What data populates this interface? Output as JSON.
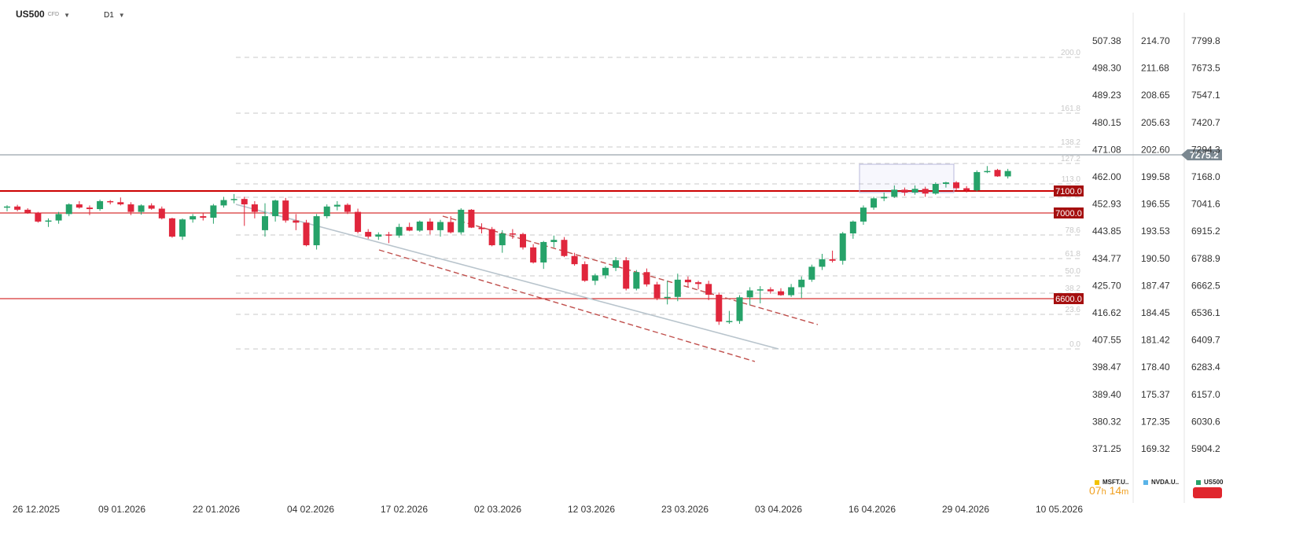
{
  "header": {
    "symbol": "US500",
    "symbol_type": "CFD",
    "timeframe": "D1"
  },
  "countdown": {
    "hours": "07",
    "hours_unit": "h",
    "minutes": "14",
    "minutes_unit": "m"
  },
  "legend": [
    {
      "label": "MSFT.U..",
      "color": "#f2c200"
    },
    {
      "label": "NVDA.U..",
      "color": "#5ab4e8"
    },
    {
      "label": "US500",
      "color": "#26a269"
    }
  ],
  "colors": {
    "bull": "#26a269",
    "bear": "#e0263c",
    "hline": "#cc0000",
    "channel": "#c0504d",
    "midline": "#b8c4cc",
    "current": "#7a8790"
  },
  "chart_data": {
    "type": "candlestick",
    "price_axis": {
      "labels": [
        "7799.8",
        "7673.5",
        "7547.1",
        "7420.7",
        "7294.3",
        "7168.0",
        "7041.6",
        "6915.2",
        "6788.9",
        "6662.5",
        "6536.1",
        "6409.7",
        "6283.4",
        "6157.0",
        "6030.6",
        "5904.2"
      ],
      "ylim": [
        5904.2,
        7799.8
      ]
    },
    "compare_axis_1": {
      "labels": [
        "507.38",
        "498.30",
        "489.23",
        "480.15",
        "471.08",
        "462.00",
        "452.93",
        "443.85",
        "434.77",
        "425.70",
        "416.62",
        "407.55",
        "398.47",
        "389.40",
        "380.32",
        "371.25"
      ]
    },
    "compare_axis_2": {
      "labels": [
        "214.70",
        "211.68",
        "208.65",
        "205.63",
        "202.60",
        "199.58",
        "196.55",
        "193.53",
        "190.50",
        "187.47",
        "184.45",
        "181.42",
        "178.40",
        "175.37",
        "172.35",
        "169.32"
      ]
    },
    "dates": [
      "26 12.2025",
      "09 01.2026",
      "22 01.2026",
      "04 02.2026",
      "17 02.2026",
      "02 03.2026",
      "12 03.2026",
      "23 03.2026",
      "03 04.2026",
      "16 04.2026",
      "29 04.2026",
      "10 05.2026"
    ],
    "current_price": "7275.2",
    "horizontal_levels": [
      "7100.0",
      "7000.0",
      "6600.0"
    ],
    "fib_levels": [
      "200.0",
      "161.8",
      "138.2",
      "127.2",
      "113.0",
      "100.0",
      "78.6",
      "61.8",
      "50.0",
      "38.2",
      "23.6",
      "0.0"
    ],
    "candles": [
      [
        7025,
        7036,
        7008,
        7030
      ],
      [
        7030,
        7038,
        7008,
        7015
      ],
      [
        7015,
        7022,
        6996,
        7002
      ],
      [
        7002,
        7005,
        6955,
        6960
      ],
      [
        6960,
        6975,
        6935,
        6965
      ],
      [
        6965,
        7005,
        6950,
        6995
      ],
      [
        6995,
        7045,
        6985,
        7040
      ],
      [
        7040,
        7055,
        7020,
        7025
      ],
      [
        7025,
        7035,
        6990,
        7018
      ],
      [
        7018,
        7062,
        7010,
        7055
      ],
      [
        7055,
        7060,
        7040,
        7050
      ],
      [
        7050,
        7072,
        7035,
        7040
      ],
      [
        7040,
        7050,
        6990,
        7005
      ],
      [
        7005,
        7040,
        6992,
        7035
      ],
      [
        7035,
        7045,
        7015,
        7020
      ],
      [
        7020,
        7030,
        6970,
        6975
      ],
      [
        6975,
        6978,
        6885,
        6890
      ],
      [
        6890,
        6975,
        6875,
        6970
      ],
      [
        6970,
        6995,
        6955,
        6985
      ],
      [
        6985,
        7000,
        6965,
        6978
      ],
      [
        6978,
        7042,
        6950,
        7035
      ],
      [
        7035,
        7075,
        7025,
        7060
      ],
      [
        7060,
        7088,
        7045,
        7065
      ],
      [
        7065,
        7075,
        6940,
        7040
      ],
      [
        7040,
        7055,
        6975,
        7005
      ],
      [
        6920,
        7045,
        6890,
        6985
      ],
      [
        6985,
        7062,
        6960,
        7058
      ],
      [
        7058,
        7070,
        6955,
        6965
      ],
      [
        6965,
        6995,
        6920,
        6955
      ],
      [
        6955,
        6968,
        6845,
        6850
      ],
      [
        6850,
        6995,
        6830,
        6985
      ],
      [
        6985,
        7040,
        6975,
        7030
      ],
      [
        7030,
        7055,
        7012,
        7038
      ],
      [
        7038,
        7045,
        6995,
        7005
      ],
      [
        7005,
        7020,
        6905,
        6912
      ],
      [
        6912,
        6925,
        6880,
        6890
      ],
      [
        6890,
        6910,
        6875,
        6900
      ],
      [
        6900,
        6912,
        6860,
        6895
      ],
      [
        6895,
        6950,
        6885,
        6935
      ],
      [
        6935,
        6955,
        6915,
        6918
      ],
      [
        6918,
        6965,
        6912,
        6960
      ],
      [
        6960,
        6975,
        6900,
        6920
      ],
      [
        6920,
        6968,
        6890,
        6958
      ],
      [
        6958,
        6985,
        6905,
        6910
      ],
      [
        6910,
        7022,
        6900,
        7015
      ],
      [
        7015,
        7018,
        6930,
        6932
      ],
      [
        6932,
        6952,
        6905,
        6925
      ],
      [
        6925,
        6935,
        6845,
        6850
      ],
      [
        6850,
        6920,
        6815,
        6905
      ],
      [
        6905,
        6925,
        6880,
        6902
      ],
      [
        6902,
        6908,
        6830,
        6840
      ],
      [
        6840,
        6855,
        6765,
        6770
      ],
      [
        6770,
        6870,
        6740,
        6865
      ],
      [
        6865,
        6895,
        6840,
        6875
      ],
      [
        6875,
        6888,
        6795,
        6800
      ],
      [
        6800,
        6815,
        6755,
        6762
      ],
      [
        6762,
        6775,
        6680,
        6685
      ],
      [
        6685,
        6718,
        6665,
        6710
      ],
      [
        6710,
        6752,
        6695,
        6745
      ],
      [
        6745,
        6795,
        6730,
        6780
      ],
      [
        6780,
        6795,
        6640,
        6648
      ],
      [
        6648,
        6735,
        6640,
        6725
      ],
      [
        6725,
        6742,
        6658,
        6668
      ],
      [
        6668,
        6680,
        6595,
        6605
      ],
      [
        6605,
        6685,
        6575,
        6610
      ],
      [
        6610,
        6718,
        6590,
        6690
      ],
      [
        6690,
        6705,
        6655,
        6678
      ],
      [
        6678,
        6685,
        6645,
        6670
      ],
      [
        6670,
        6685,
        6595,
        6620
      ],
      [
        6620,
        6630,
        6480,
        6495
      ],
      [
        6495,
        6545,
        6485,
        6498
      ],
      [
        6498,
        6618,
        6485,
        6608
      ],
      [
        6608,
        6655,
        6570,
        6640
      ],
      [
        6640,
        6660,
        6580,
        6645
      ],
      [
        6645,
        6655,
        6625,
        6636
      ],
      [
        6636,
        6650,
        6615,
        6618
      ],
      [
        6618,
        6670,
        6610,
        6655
      ],
      [
        6655,
        6705,
        6605,
        6690
      ],
      [
        6690,
        6760,
        6680,
        6750
      ],
      [
        6750,
        6810,
        6735,
        6785
      ],
      [
        6785,
        6825,
        6770,
        6778
      ],
      [
        6778,
        6912,
        6760,
        6905
      ],
      [
        6905,
        6965,
        6880,
        6960
      ],
      [
        6960,
        7035,
        6945,
        7025
      ],
      [
        7025,
        7075,
        7015,
        7068
      ],
      [
        7068,
        7095,
        7055,
        7075
      ],
      [
        7075,
        7128,
        7070,
        7108
      ],
      [
        7108,
        7118,
        7080,
        7095
      ],
      [
        7095,
        7128,
        7085,
        7112
      ],
      [
        7112,
        7122,
        7075,
        7090
      ],
      [
        7090,
        7142,
        7085,
        7135
      ],
      [
        7135,
        7145,
        7118,
        7142
      ],
      [
        7142,
        7148,
        7105,
        7115
      ],
      [
        7115,
        7125,
        7095,
        7105
      ],
      [
        7105,
        7198,
        7100,
        7190
      ],
      [
        7190,
        7218,
        7185,
        7195
      ],
      [
        7200,
        7205,
        7168,
        7170
      ],
      [
        7170,
        7205,
        7160,
        7195
      ]
    ]
  }
}
